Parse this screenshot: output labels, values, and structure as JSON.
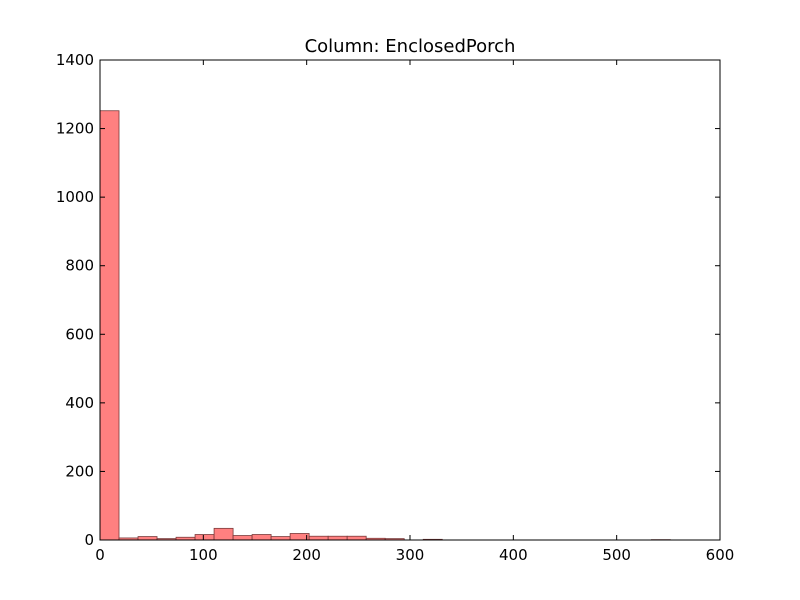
{
  "chart_data": {
    "type": "bar",
    "title": "Column: EnclosedPorch",
    "xlabel": "",
    "ylabel": "",
    "xlim": [
      0,
      600
    ],
    "ylim": [
      0,
      1400
    ],
    "xticks": [
      0,
      100,
      200,
      300,
      400,
      500,
      600
    ],
    "yticks": [
      0,
      200,
      400,
      600,
      800,
      1000,
      1200,
      1400
    ],
    "grid": false,
    "bar_color": "#ff8080",
    "bar_edge_color": "#7a3a3a",
    "bins": [
      {
        "x0": 0.0,
        "x1": 18.4,
        "count": 1252
      },
      {
        "x0": 18.4,
        "x1": 36.8,
        "count": 6
      },
      {
        "x0": 36.8,
        "x1": 55.2,
        "count": 10
      },
      {
        "x0": 55.2,
        "x1": 73.6,
        "count": 4
      },
      {
        "x0": 73.6,
        "x1": 92.0,
        "count": 8
      },
      {
        "x0": 92.0,
        "x1": 110.4,
        "count": 16
      },
      {
        "x0": 110.4,
        "x1": 128.8,
        "count": 34
      },
      {
        "x0": 128.8,
        "x1": 147.2,
        "count": 13
      },
      {
        "x0": 147.2,
        "x1": 165.6,
        "count": 16
      },
      {
        "x0": 165.6,
        "x1": 184.0,
        "count": 10
      },
      {
        "x0": 184.0,
        "x1": 202.4,
        "count": 19
      },
      {
        "x0": 202.4,
        "x1": 220.8,
        "count": 11
      },
      {
        "x0": 220.8,
        "x1": 239.2,
        "count": 11
      },
      {
        "x0": 239.2,
        "x1": 257.6,
        "count": 11
      },
      {
        "x0": 257.6,
        "x1": 276.0,
        "count": 5
      },
      {
        "x0": 276.0,
        "x1": 294.4,
        "count": 4
      },
      {
        "x0": 294.4,
        "x1": 312.8,
        "count": 0
      },
      {
        "x0": 312.8,
        "x1": 331.2,
        "count": 2
      },
      {
        "x0": 331.2,
        "x1": 349.6,
        "count": 0
      },
      {
        "x0": 349.6,
        "x1": 368.0,
        "count": 0
      },
      {
        "x0": 368.0,
        "x1": 386.4,
        "count": 0
      },
      {
        "x0": 386.4,
        "x1": 404.8,
        "count": 0
      },
      {
        "x0": 404.8,
        "x1": 423.2,
        "count": 0
      },
      {
        "x0": 423.2,
        "x1": 441.6,
        "count": 0
      },
      {
        "x0": 441.6,
        "x1": 460.0,
        "count": 0
      },
      {
        "x0": 460.0,
        "x1": 478.4,
        "count": 0
      },
      {
        "x0": 478.4,
        "x1": 496.8,
        "count": 0
      },
      {
        "x0": 496.8,
        "x1": 515.2,
        "count": 0
      },
      {
        "x0": 515.2,
        "x1": 533.6,
        "count": 0
      },
      {
        "x0": 533.6,
        "x1": 552.0,
        "count": 1
      }
    ]
  }
}
